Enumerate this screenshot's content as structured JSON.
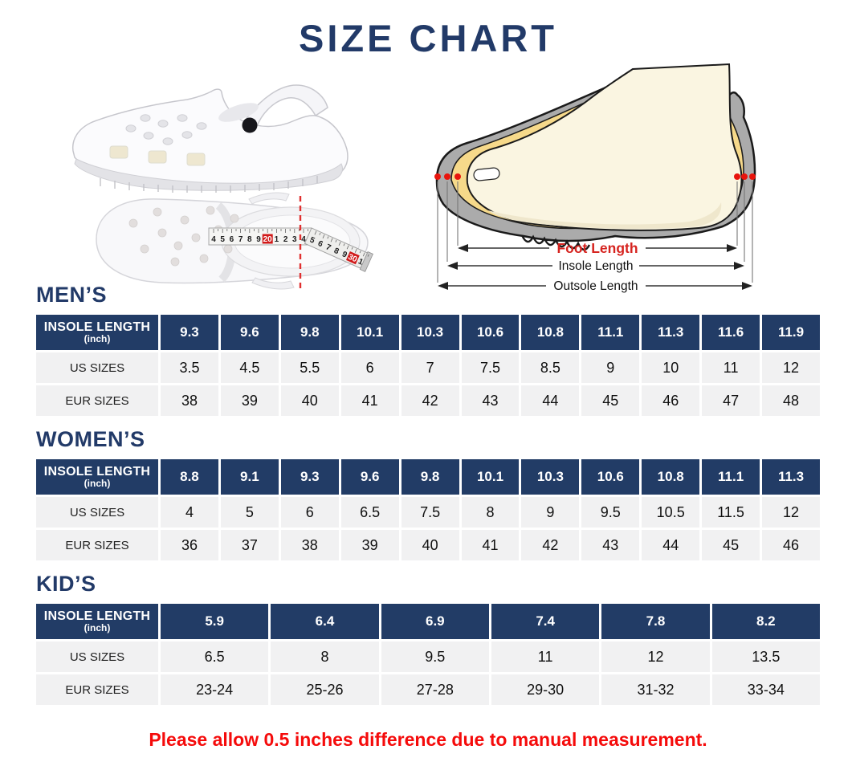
{
  "title": "SIZE CHART",
  "disclaimer": "Please allow 0.5 inches difference due to manual measurement.",
  "diagram": {
    "foot_label": "Foot Length",
    "insole_label": "Insole Length",
    "outsole_label": "Outsole Length"
  },
  "tape_numbers": [
    "4",
    "5",
    "6",
    "7",
    "8",
    "9",
    "20",
    "1",
    "2",
    "3",
    "4",
    "5",
    "6",
    "7",
    "8",
    "9",
    "30",
    "1"
  ],
  "colors": {
    "navy": "#223c66",
    "title_navy": "#223a68",
    "disclaimer_red": "#f50b0b",
    "foot_label_red": "#d62420",
    "row_gray": "#f1f1f2",
    "shoe_gray": "#ababab",
    "insole_yellow": "#f6d98a",
    "foot_cream": "#faf5e1"
  },
  "chart_data": [
    {
      "type": "table",
      "title": "MEN’S",
      "header_label": "INSOLE LENGTH",
      "header_sub": "(inch)",
      "us_label": "US SIZES",
      "eur_label": "EUR SIZES",
      "insole_inch": [
        "9.3",
        "9.6",
        "9.8",
        "10.1",
        "10.3",
        "10.6",
        "10.8",
        "11.1",
        "11.3",
        "11.6",
        "11.9"
      ],
      "us_sizes": [
        "3.5",
        "4.5",
        "5.5",
        "6",
        "7",
        "7.5",
        "8.5",
        "9",
        "10",
        "11",
        "12"
      ],
      "eur_sizes": [
        "38",
        "39",
        "40",
        "41",
        "42",
        "43",
        "44",
        "45",
        "46",
        "47",
        "48"
      ]
    },
    {
      "type": "table",
      "title": "WOMEN’S",
      "header_label": "INSOLE LENGTH",
      "header_sub": "(inch)",
      "us_label": "US SIZES",
      "eur_label": "EUR SIZES",
      "insole_inch": [
        "8.8",
        "9.1",
        "9.3",
        "9.6",
        "9.8",
        "10.1",
        "10.3",
        "10.6",
        "10.8",
        "11.1",
        "11.3"
      ],
      "us_sizes": [
        "4",
        "5",
        "6",
        "6.5",
        "7.5",
        "8",
        "9",
        "9.5",
        "10.5",
        "11.5",
        "12"
      ],
      "eur_sizes": [
        "36",
        "37",
        "38",
        "39",
        "40",
        "41",
        "42",
        "43",
        "44",
        "45",
        "46"
      ]
    },
    {
      "type": "table",
      "title": "KID’S",
      "header_label": "INSOLE LENGTH",
      "header_sub": "(inch)",
      "us_label": "US SIZES",
      "eur_label": "EUR SIZES",
      "insole_inch": [
        "5.9",
        "6.4",
        "6.9",
        "7.4",
        "7.8",
        "8.2"
      ],
      "us_sizes": [
        "6.5",
        "8",
        "9.5",
        "11",
        "12",
        "13.5"
      ],
      "eur_sizes": [
        "23-24",
        "25-26",
        "27-28",
        "29-30",
        "31-32",
        "33-34"
      ]
    }
  ]
}
